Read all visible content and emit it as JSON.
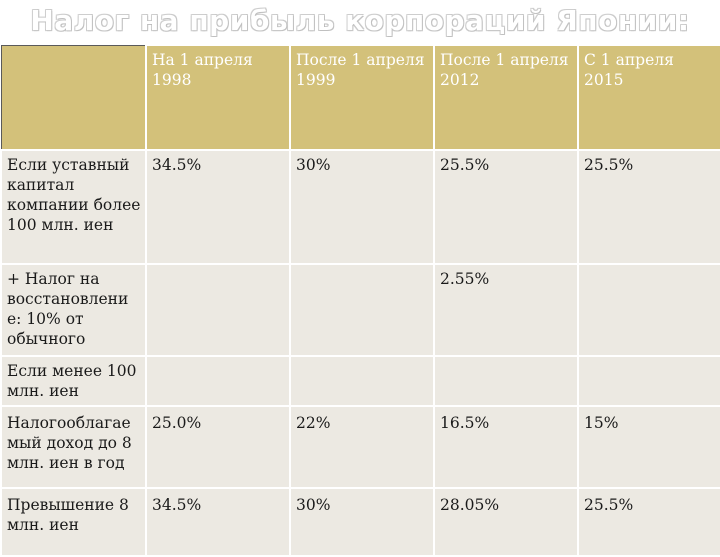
{
  "title": "Налог на прибыль корпораций Японии:",
  "header": [
    "",
    "На 1 апреля 1998",
    "После 1 апреля 1999",
    "После 1 апреля 2012",
    "С 1 апреля 2015"
  ],
  "rows": [
    {
      "label": "Если уставный капитал компании более 100 млн. иен",
      "cells": [
        "34.5%",
        "30%",
        "25.5%",
        "25.5%"
      ]
    },
    {
      "label": "+ Налог на восстановлени е: 10% от обычного",
      "cells": [
        "",
        "",
        "2.55%",
        ""
      ]
    },
    {
      "label": "Если менее 100 млн. иен",
      "cells": [
        "",
        "",
        "",
        ""
      ]
    },
    {
      "label": "Налогооблагае мый доход до 8 млн. иен в год",
      "cells": [
        "25.0%",
        "22%",
        "16.5%",
        "15%"
      ]
    },
    {
      "label": "Превышение 8 млн. иен",
      "cells": [
        "34.5%",
        "30%",
        "28.05%",
        "25.5%"
      ]
    }
  ],
  "colors": {
    "header_bg": "#d3c17a",
    "body_bg": "#ece9e2",
    "header_text": "#ffffff",
    "body_text": "#1a1a1a"
  }
}
